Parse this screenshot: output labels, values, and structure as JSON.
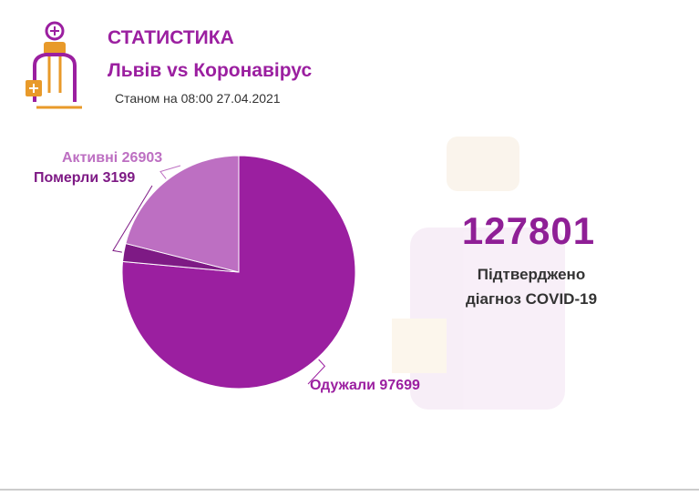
{
  "chart_data": {
    "type": "pie",
    "title": "СТАТИСТИКА",
    "subtitle": "Львів vs Коронавірус",
    "date_note": "Станом на 08:00 27.04.2021",
    "categories": [
      "Одужали",
      "Померли",
      "Активні"
    ],
    "values": [
      97699,
      3199,
      26903
    ],
    "colors": [
      "#9b1fa0",
      "#7e1a85",
      "#bd6fc2"
    ],
    "total": 127801,
    "total_label": "Підтверджено діагноз COVID-19"
  }
}
